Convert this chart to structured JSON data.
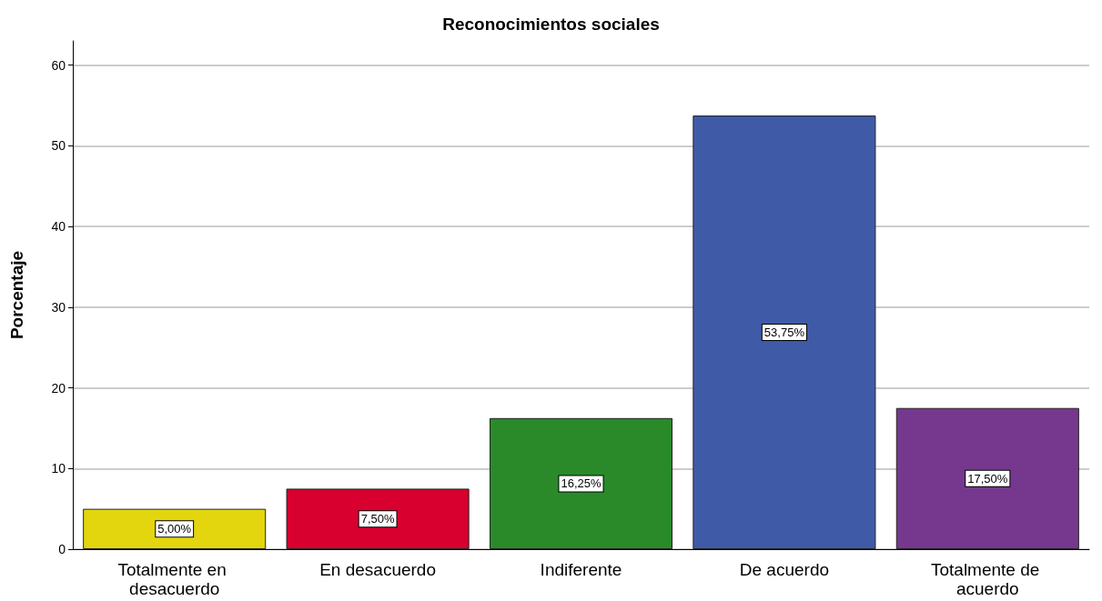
{
  "chart_data": {
    "type": "bar",
    "title": "Reconocimientos sociales",
    "ylabel": "Porcentaje",
    "categories": [
      "Totalmente en desacuerdo",
      "En desacuerdo",
      "Indiferente",
      "De acuerdo",
      "Totalmente de acuerdo"
    ],
    "values": [
      5,
      7.5,
      16.25,
      53.75,
      17.5
    ],
    "colors": [
      "#e3d60e",
      "#d7002e",
      "#2a8a2a",
      "#3f5ba8",
      "#76388e"
    ],
    "value_labels": [
      "5,00%",
      "7,50%",
      "16,25%",
      "53,75%",
      "17,50%"
    ],
    "ylim": [
      0,
      63
    ],
    "yticks": [
      0,
      10,
      20,
      30,
      40,
      50,
      60
    ],
    "grid": "y"
  }
}
